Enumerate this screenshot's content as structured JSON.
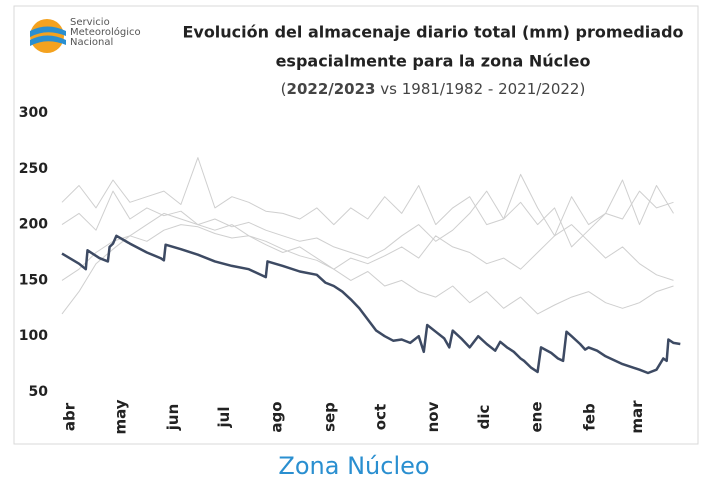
{
  "logo": {
    "lines": [
      "Servicio",
      "Meteorológico",
      "Nacional"
    ]
  },
  "chart_data": {
    "type": "line",
    "title": [
      "Evolución del almacenaje diario total (mm) promediado",
      "espacialmente para la zona Núcleo"
    ],
    "subtitle_parts": [
      "(",
      "2022/2023",
      " vs 1981/1982 - 2021/2022)"
    ],
    "xlim": [
      0,
      365
    ],
    "xticks": [
      {
        "value": 0,
        "label": "abr"
      },
      {
        "value": 30,
        "label": "may"
      },
      {
        "value": 61,
        "label": "jun"
      },
      {
        "value": 91,
        "label": "jul"
      },
      {
        "value": 122,
        "label": "ago"
      },
      {
        "value": 153,
        "label": "sep"
      },
      {
        "value": 183,
        "label": "oct"
      },
      {
        "value": 214,
        "label": "nov"
      },
      {
        "value": 244,
        "label": "dic"
      },
      {
        "value": 275,
        "label": "ene"
      },
      {
        "value": 306,
        "label": "feb"
      },
      {
        "value": 334,
        "label": "mar"
      }
    ],
    "ylim": [
      50,
      300
    ],
    "yticks": [
      50,
      100,
      150,
      200,
      250,
      300
    ],
    "series": [
      {
        "color": "#cfcfcf",
        "width": 1,
        "x": [
          0,
          10,
          20,
          30,
          40,
          50,
          60,
          70,
          80,
          90,
          100,
          110,
          120,
          130,
          140,
          150,
          160,
          170,
          180,
          190,
          200,
          210,
          220,
          230,
          240,
          250,
          260,
          270,
          280,
          290,
          300,
          310,
          320,
          330,
          340,
          350,
          360
        ],
        "values": [
          200,
          210,
          195,
          230,
          205,
          215,
          208,
          212,
          200,
          205,
          198,
          202,
          195,
          190,
          185,
          188,
          180,
          175,
          170,
          178,
          190,
          200,
          185,
          195,
          210,
          230,
          205,
          220,
          200,
          215,
          180,
          195,
          210,
          205,
          230,
          215,
          220
        ]
      },
      {
        "color": "#cfcfcf",
        "width": 1,
        "x": [
          0,
          10,
          20,
          30,
          40,
          50,
          60,
          70,
          80,
          90,
          100,
          110,
          120,
          130,
          140,
          150,
          160,
          170,
          180,
          190,
          200,
          210,
          220,
          230,
          240,
          250,
          260,
          270,
          280,
          290,
          300,
          310,
          320,
          330,
          340,
          350,
          360
        ],
        "values": [
          150,
          160,
          175,
          185,
          190,
          200,
          210,
          205,
          200,
          195,
          200,
          190,
          185,
          178,
          172,
          168,
          160,
          170,
          165,
          172,
          180,
          170,
          190,
          180,
          175,
          165,
          170,
          160,
          175,
          190,
          200,
          185,
          170,
          180,
          165,
          155,
          150
        ]
      },
      {
        "color": "#cfcfcf",
        "width": 1,
        "x": [
          0,
          10,
          20,
          30,
          40,
          50,
          60,
          70,
          80,
          90,
          100,
          110,
          120,
          130,
          140,
          150,
          160,
          170,
          180,
          190,
          200,
          210,
          220,
          230,
          240,
          250,
          260,
          270,
          280,
          290,
          300,
          310,
          320,
          330,
          340,
          350,
          360
        ],
        "values": [
          120,
          140,
          165,
          178,
          190,
          185,
          195,
          200,
          198,
          192,
          188,
          190,
          182,
          175,
          180,
          170,
          160,
          150,
          158,
          145,
          150,
          140,
          135,
          145,
          130,
          140,
          125,
          135,
          120,
          128,
          135,
          140,
          130,
          125,
          130,
          140,
          145
        ]
      },
      {
        "color": "#cfcfcf",
        "width": 1,
        "x": [
          0,
          10,
          20,
          30,
          40,
          50,
          60,
          70,
          80,
          90,
          100,
          110,
          120,
          130,
          140,
          150,
          160,
          170,
          180,
          190,
          200,
          210,
          220,
          230,
          240,
          250,
          260,
          270,
          280,
          290,
          300,
          310,
          320,
          330,
          340,
          350,
          360
        ],
        "values": [
          220,
          235,
          215,
          240,
          220,
          225,
          230,
          218,
          260,
          215,
          225,
          220,
          212,
          210,
          205,
          215,
          200,
          215,
          205,
          225,
          210,
          235,
          200,
          215,
          225,
          200,
          205,
          245,
          215,
          190,
          225,
          200,
          210,
          240,
          200,
          235,
          210
        ]
      },
      {
        "color": "#3d4a63",
        "width": 2.5,
        "x": [
          0,
          10,
          14,
          15,
          22,
          27,
          28,
          30,
          32,
          40,
          50,
          58,
          60,
          61,
          70,
          80,
          90,
          100,
          110,
          120,
          121,
          130,
          140,
          150,
          155,
          160,
          165,
          170,
          175,
          180,
          185,
          190,
          195,
          200,
          205,
          210,
          213,
          215,
          220,
          225,
          228,
          230,
          235,
          240,
          245,
          250,
          255,
          258,
          262,
          266,
          270,
          272,
          276,
          280,
          282,
          288,
          292,
          295,
          297,
          300,
          305,
          308,
          310,
          315,
          320,
          330,
          340,
          345,
          350,
          354,
          356,
          357,
          360,
          364
        ],
        "values": [
          174,
          165,
          160,
          177,
          170,
          167,
          180,
          183,
          190,
          183,
          175,
          170,
          168,
          182,
          178,
          173,
          167,
          163,
          160,
          153,
          167,
          163,
          158,
          155,
          148,
          145,
          140,
          133,
          125,
          115,
          105,
          100,
          96,
          97,
          94,
          100,
          86,
          110,
          104,
          98,
          90,
          105,
          98,
          90,
          100,
          93,
          87,
          95,
          90,
          86,
          80,
          78,
          72,
          68,
          90,
          85,
          80,
          78,
          104,
          100,
          93,
          88,
          90,
          87,
          82,
          75,
          70,
          67,
          70,
          80,
          78,
          97,
          94,
          93
        ]
      }
    ]
  },
  "footer": "Zona Núcleo"
}
